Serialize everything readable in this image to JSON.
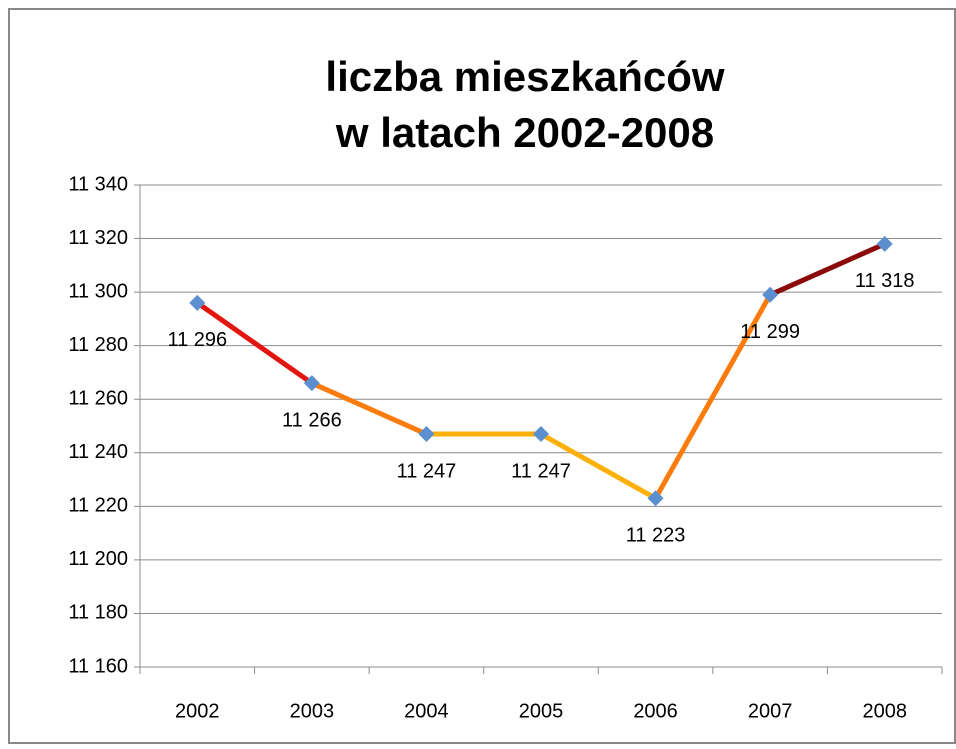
{
  "chart_data": {
    "type": "line",
    "title": [
      "liczba mieszkańców",
      "w latach 2002-2008"
    ],
    "categories": [
      "2002",
      "2003",
      "2004",
      "2005",
      "2006",
      "2007",
      "2008"
    ],
    "values": [
      11296,
      11266,
      11247,
      11247,
      11223,
      11299,
      11318
    ],
    "value_labels": [
      "11 296",
      "11 266",
      "11 247",
      "11 247",
      "11 223",
      "11 299",
      "11 318"
    ],
    "segment_colors": [
      "#e3150f",
      "#fb7c0c",
      "#fdb00a",
      "#fdb00a",
      "#fb7c0c",
      "#8b0a0a"
    ],
    "marker_color": "#5b8fd0",
    "ylim": [
      11160,
      11340
    ],
    "yticks": [
      {
        "value": 11160,
        "label": "11 160"
      },
      {
        "value": 11180,
        "label": "11 180"
      },
      {
        "value": 11200,
        "label": "11 200"
      },
      {
        "value": 11220,
        "label": "11 220"
      },
      {
        "value": 11240,
        "label": "11 240"
      },
      {
        "value": 11260,
        "label": "11 260"
      },
      {
        "value": 11280,
        "label": "11 280"
      },
      {
        "value": 11300,
        "label": "11 300"
      },
      {
        "value": 11320,
        "label": "11 320"
      },
      {
        "value": 11340,
        "label": "11 340"
      }
    ],
    "grid": true
  }
}
